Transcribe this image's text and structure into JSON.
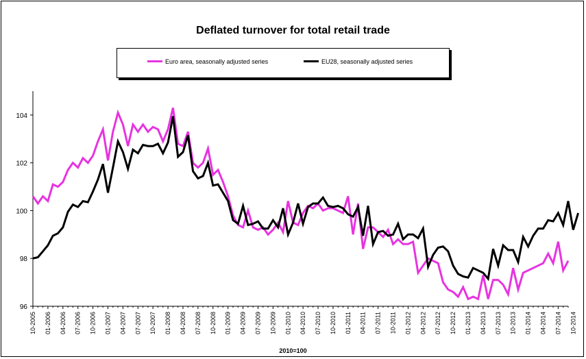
{
  "title": "Deflated turnover for total retail trade",
  "caption": "2010=100",
  "colors": {
    "euro_area": "#e733e0",
    "eu28": "#000000"
  },
  "chart_data": {
    "type": "line",
    "title": "Deflated turnover for total retail trade",
    "xlabel": "2010=100",
    "ylabel": "",
    "ylim": [
      96,
      105
    ],
    "yticks": [
      96,
      98,
      100,
      102,
      104
    ],
    "grid": false,
    "legend_position": "top",
    "tick_labels": [
      "10-2005",
      "01-2006",
      "04-2006",
      "07-2006",
      "10-2006",
      "01-2007",
      "04-2007",
      "07-2007",
      "10-2007",
      "01-2008",
      "04-2008",
      "07-2008",
      "10-2008",
      "01-2009",
      "04-2009",
      "07-2009",
      "10-2009",
      "01-2010",
      "04-2010",
      "07-2010",
      "10-2010",
      "01-2011",
      "04-2011",
      "07-2011",
      "10-2011",
      "01-2012",
      "04-2012",
      "07-2012",
      "10-2012",
      "01-2013",
      "04-2013",
      "07-2013",
      "10-2013",
      "01-2014",
      "04-2014",
      "07-2014",
      "10-2014"
    ],
    "series": [
      {
        "name": "Euro area, seasonally adjusted series",
        "color": "#e733e0",
        "values": [
          100.6,
          100.3,
          100.6,
          100.4,
          101.1,
          101.0,
          101.2,
          101.7,
          102.0,
          101.8,
          102.2,
          102.0,
          102.3,
          102.9,
          103.4,
          102.1,
          103.3,
          104.1,
          103.6,
          102.7,
          103.6,
          103.3,
          103.6,
          103.3,
          103.5,
          103.4,
          102.9,
          103.4,
          104.3,
          102.8,
          102.7,
          103.3,
          102.0,
          101.8,
          102.0,
          102.6,
          101.5,
          101.7,
          101.2,
          100.6,
          99.8,
          99.4,
          99.3,
          100.0,
          99.3,
          99.2,
          99.3,
          99.0,
          99.2,
          99.5,
          99.1,
          100.4,
          99.5,
          99.4,
          99.9,
          100.2,
          100.1,
          100.3,
          100.0,
          100.1,
          100.1,
          100.0,
          99.9,
          100.6,
          99.0,
          100.3,
          98.4,
          99.3,
          99.3,
          99.1,
          98.9,
          99.2,
          98.6,
          98.8,
          98.6,
          98.6,
          98.7,
          97.4,
          97.7,
          98.0,
          97.9,
          97.8,
          97.0,
          96.7,
          96.6,
          96.4,
          96.8,
          96.3,
          96.4,
          96.3,
          97.3,
          96.3,
          97.1,
          97.1,
          96.9,
          96.5,
          97.6,
          96.7,
          97.4,
          97.5,
          97.6,
          97.7,
          97.8,
          98.2,
          97.8,
          98.7,
          97.5,
          97.9
        ]
      },
      {
        "name": "EU28, seasonally adjusted series",
        "color": "#000000",
        "values": [
          98.0,
          98.05,
          98.3,
          98.55,
          98.95,
          99.05,
          99.3,
          99.95,
          100.25,
          100.15,
          100.4,
          100.35,
          100.8,
          101.3,
          101.95,
          100.75,
          101.8,
          102.9,
          102.45,
          101.75,
          102.55,
          102.4,
          102.75,
          102.7,
          102.7,
          102.8,
          102.4,
          102.85,
          103.95,
          102.25,
          102.45,
          103.15,
          101.65,
          101.35,
          101.45,
          102.0,
          101.05,
          101.1,
          100.75,
          100.4,
          99.6,
          99.45,
          100.2,
          99.4,
          99.45,
          99.55,
          99.25,
          99.25,
          99.6,
          99.3,
          100.1,
          99.0,
          99.5,
          100.3,
          99.45,
          100.15,
          100.3,
          100.3,
          100.55,
          100.2,
          100.15,
          100.2,
          100.1,
          99.85,
          99.75,
          100.15,
          98.95,
          100.2,
          98.6,
          99.1,
          99.15,
          98.95,
          99.0,
          99.45,
          98.8,
          99.0,
          99.0,
          98.85,
          99.25,
          97.65,
          98.15,
          98.45,
          98.5,
          98.3,
          97.7,
          97.35,
          97.25,
          97.2,
          97.6,
          97.5,
          97.4,
          97.15,
          98.4,
          97.7,
          98.55,
          98.35,
          98.35,
          97.85,
          98.9,
          98.5,
          98.95,
          99.25,
          99.25,
          99.6,
          99.55,
          99.9,
          99.4,
          100.4,
          99.2,
          99.9
        ]
      }
    ]
  }
}
